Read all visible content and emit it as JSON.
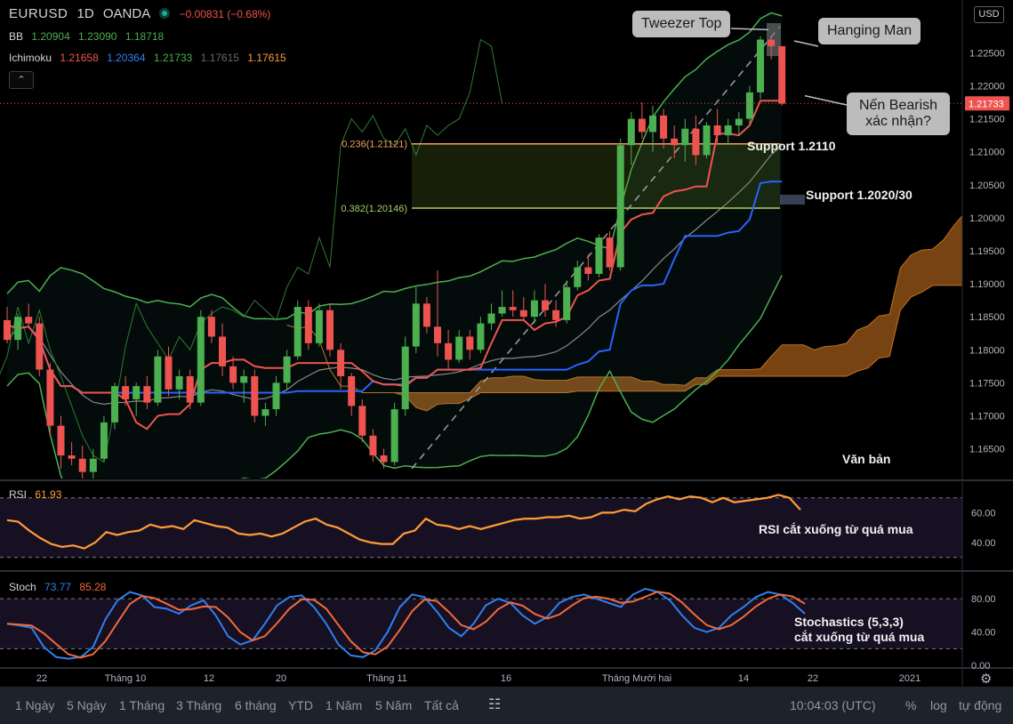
{
  "header": {
    "symbol": "EURUSD",
    "interval": "1D",
    "exchange": "OANDA",
    "change": "−0.00831 (−0.68%)",
    "currency_button": "USD"
  },
  "indicators": {
    "bb": {
      "label": "BB",
      "v1": "1.20904",
      "v2": "1.23090",
      "v3": "1.18718"
    },
    "ichimoku": {
      "label": "Ichimoku",
      "v1": "1.21658",
      "v2": "1.20364",
      "v3": "1.21733",
      "v4": "1.17615",
      "v5": "1.17615"
    },
    "rsi": {
      "label": "RSI",
      "value": "61.93"
    },
    "stoch": {
      "label": "Stoch",
      "k": "73.77",
      "d": "85.28"
    }
  },
  "colors": {
    "up": "#4caf50",
    "down": "#ef5350",
    "bb": "#4caf50",
    "tenkan": "#ef5350",
    "kijun": "#2962ff",
    "chikou": "#4caf50",
    "cloud": "#a05a1a",
    "rsi": "#ff9b38",
    "stoch_k": "#2f80ed",
    "stoch_d": "#f06a3c",
    "fib": "#f0a060",
    "fib2": "#a5d06a"
  },
  "annotations": {
    "tweezer_top": "Tweezer Top",
    "hanging_man": "Hanging Man",
    "bearish_confirm": "Nến Bearish xác nhận?",
    "support1": "Support 1.2110",
    "support2": "Support 1.2020/30",
    "text_label": "Văn bản",
    "rsi_note": "RSI cắt xuống từ quá mua",
    "stoch_note_1": "Stochastics (5,3,3)",
    "stoch_note_2": "cắt xuống từ quá mua",
    "fib_236": "0.236(1.21121)",
    "fib_382": "0.382(1.20146)"
  },
  "bottom_bar": {
    "ranges": [
      "1 Ngày",
      "5 Ngày",
      "1 Tháng",
      "3 Tháng",
      "6 tháng",
      "YTD",
      "1 Năm",
      "5 Năm",
      "Tất cả"
    ],
    "time": "10:04:03 (UTC)",
    "percent": "%",
    "log": "log",
    "auto": "tự động"
  },
  "chart_data": [
    {
      "type": "candlestick",
      "y_ticks": [
        "1.22500",
        "1.22000",
        "1.21500",
        "1.21000",
        "1.20500",
        "1.20000",
        "1.19500",
        "1.19000",
        "1.18500",
        "1.18000",
        "1.17500",
        "1.17000",
        "1.16500"
      ],
      "last_price": "1.21733",
      "x_ticks": [
        "22",
        "Tháng 10",
        "12",
        "20",
        "Tháng 11",
        "16",
        "Tháng Mười hai",
        "14",
        "22",
        "2021"
      ],
      "ylim": [
        1.1605,
        1.233
      ],
      "fib_levels": [
        1.21121,
        1.20146
      ],
      "candles": [
        [
          1.1845,
          1.1865,
          1.181,
          1.1815
        ],
        [
          1.1815,
          1.1855,
          1.18,
          1.185
        ],
        [
          1.185,
          1.187,
          1.1835,
          1.184
        ],
        [
          1.184,
          1.185,
          1.176,
          1.177
        ],
        [
          1.177,
          1.178,
          1.167,
          1.1685
        ],
        [
          1.1685,
          1.17,
          1.162,
          1.164
        ],
        [
          1.164,
          1.166,
          1.1625,
          1.1635
        ],
        [
          1.1635,
          1.1655,
          1.16,
          1.1615
        ],
        [
          1.1615,
          1.165,
          1.16,
          1.1635
        ],
        [
          1.1635,
          1.17,
          1.163,
          1.169
        ],
        [
          1.169,
          1.175,
          1.168,
          1.1745
        ],
        [
          1.1745,
          1.176,
          1.1715,
          1.1725
        ],
        [
          1.1725,
          1.175,
          1.17,
          1.1745
        ],
        [
          1.1745,
          1.176,
          1.171,
          1.172
        ],
        [
          1.172,
          1.18,
          1.1715,
          1.179
        ],
        [
          1.179,
          1.1805,
          1.173,
          1.174
        ],
        [
          1.174,
          1.177,
          1.1725,
          1.176
        ],
        [
          1.176,
          1.177,
          1.171,
          1.172
        ],
        [
          1.172,
          1.186,
          1.1715,
          1.185
        ],
        [
          1.185,
          1.186,
          1.181,
          1.182
        ],
        [
          1.182,
          1.184,
          1.176,
          1.1775
        ],
        [
          1.1775,
          1.179,
          1.174,
          1.175
        ],
        [
          1.175,
          1.177,
          1.172,
          1.176
        ],
        [
          1.176,
          1.177,
          1.169,
          1.17
        ],
        [
          1.17,
          1.172,
          1.1685,
          1.171
        ],
        [
          1.171,
          1.176,
          1.17,
          1.175
        ],
        [
          1.175,
          1.18,
          1.174,
          1.179
        ],
        [
          1.179,
          1.1875,
          1.1785,
          1.1865
        ],
        [
          1.1865,
          1.1875,
          1.18,
          1.181
        ],
        [
          1.181,
          1.187,
          1.1805,
          1.186
        ],
        [
          1.186,
          1.187,
          1.179,
          1.18
        ],
        [
          1.18,
          1.181,
          1.174,
          1.176
        ],
        [
          1.176,
          1.1765,
          1.17,
          1.1715
        ],
        [
          1.1715,
          1.1725,
          1.166,
          1.167
        ],
        [
          1.167,
          1.168,
          1.163,
          1.164
        ],
        [
          1.164,
          1.165,
          1.162,
          1.163
        ],
        [
          1.163,
          1.172,
          1.1625,
          1.171
        ],
        [
          1.171,
          1.182,
          1.17,
          1.1805
        ],
        [
          1.1805,
          1.1895,
          1.1795,
          1.187
        ],
        [
          1.187,
          1.188,
          1.1825,
          1.1835
        ],
        [
          1.1835,
          1.192,
          1.179,
          1.181
        ],
        [
          1.181,
          1.183,
          1.177,
          1.1785
        ],
        [
          1.1785,
          1.183,
          1.178,
          1.182
        ],
        [
          1.182,
          1.183,
          1.1785,
          1.18
        ],
        [
          1.18,
          1.185,
          1.1795,
          1.184
        ],
        [
          1.184,
          1.187,
          1.183,
          1.1855
        ],
        [
          1.1855,
          1.189,
          1.185,
          1.1865
        ],
        [
          1.1865,
          1.189,
          1.185,
          1.186
        ],
        [
          1.186,
          1.188,
          1.1845,
          1.185
        ],
        [
          1.185,
          1.189,
          1.184,
          1.1875
        ],
        [
          1.1875,
          1.19,
          1.185,
          1.186
        ],
        [
          1.186,
          1.1875,
          1.1835,
          1.1845
        ],
        [
          1.1845,
          1.1905,
          1.184,
          1.1895
        ],
        [
          1.1895,
          1.1935,
          1.189,
          1.1925
        ],
        [
          1.1925,
          1.1945,
          1.1905,
          1.1915
        ],
        [
          1.1915,
          1.1975,
          1.191,
          1.197
        ],
        [
          1.197,
          1.198,
          1.192,
          1.1925
        ],
        [
          1.1925,
          1.212,
          1.192,
          1.211
        ],
        [
          1.211,
          1.216,
          1.208,
          1.215
        ],
        [
          1.215,
          1.2175,
          1.212,
          1.213
        ],
        [
          1.213,
          1.217,
          1.21,
          1.2155
        ],
        [
          1.2155,
          1.2165,
          1.2105,
          1.212
        ],
        [
          1.212,
          1.214,
          1.209,
          1.211
        ],
        [
          1.211,
          1.215,
          1.2085,
          1.2135
        ],
        [
          1.2135,
          1.2155,
          1.208,
          1.2095
        ],
        [
          1.2095,
          1.2145,
          1.209,
          1.214
        ],
        [
          1.214,
          1.2165,
          1.211,
          1.2125
        ],
        [
          1.2125,
          1.215,
          1.211,
          1.214
        ],
        [
          1.214,
          1.216,
          1.2125,
          1.215
        ],
        [
          1.215,
          1.22,
          1.214,
          1.219
        ],
        [
          1.219,
          1.2275,
          1.218,
          1.227
        ],
        [
          1.227,
          1.2275,
          1.224,
          1.226
        ],
        [
          1.226,
          1.226,
          1.217,
          1.2173
        ]
      ]
    },
    {
      "type": "line",
      "name": "RSI",
      "value_label": "61.93",
      "y_ticks": [
        "60.00",
        "40.00"
      ],
      "ylim": [
        22,
        80
      ],
      "levels": [
        70,
        30
      ],
      "values": [
        55,
        54,
        48,
        43,
        39,
        37,
        38,
        36,
        40,
        47,
        45,
        47,
        48,
        52,
        50,
        51,
        49,
        55,
        53,
        51,
        50,
        46,
        45,
        46,
        44,
        46,
        50,
        54,
        56,
        52,
        50,
        46,
        42,
        40,
        39,
        39,
        46,
        48,
        56,
        52,
        51,
        49,
        51,
        49,
        51,
        53,
        55,
        56,
        56,
        57,
        57,
        58,
        56,
        57,
        60,
        60,
        62,
        61,
        66,
        69,
        71,
        69,
        71,
        70,
        67,
        70,
        67,
        68,
        69,
        70,
        72,
        70,
        62
      ]
    },
    {
      "type": "line",
      "name": "Stoch",
      "value_label_k": "73.77",
      "value_label_d": "85.28",
      "y_ticks": [
        "80.00",
        "40.00",
        "0.00"
      ],
      "ylim": [
        -2,
        110
      ],
      "levels": [
        80,
        20
      ],
      "k": [
        50,
        48,
        45,
        22,
        10,
        8,
        10,
        22,
        55,
        78,
        88,
        84,
        70,
        68,
        62,
        72,
        78,
        60,
        35,
        25,
        30,
        50,
        72,
        82,
        84,
        70,
        50,
        25,
        12,
        10,
        18,
        40,
        70,
        85,
        82,
        65,
        45,
        35,
        50,
        72,
        80,
        75,
        60,
        50,
        58,
        75,
        82,
        85,
        80,
        75,
        70,
        85,
        92,
        88,
        78,
        60,
        45,
        40,
        45,
        60,
        70,
        82,
        88,
        85,
        75,
        62
      ]
    }
  ]
}
